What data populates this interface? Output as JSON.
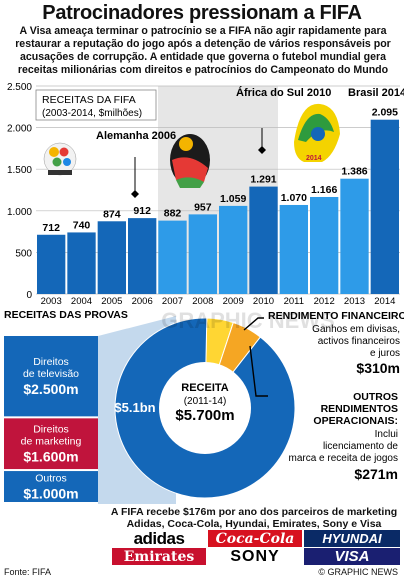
{
  "title": "Patrocinadores pressionam a FIFA",
  "intro": "A Visa ameaça terminar o patrocínio se a FIFA não agir rapidamente para restaurar a reputação do jogo após a detenção de vários responsáveis por acusações de corrupção. A entidade que governa o futebol mundial gera receitas milionárias com direitos e patrocínios do Campeonato do Mundo",
  "colors": {
    "bar_dark": "#1467b8",
    "bar_light": "#2e9be8",
    "pie_blue": "#1467b8",
    "orange": "#f5a623",
    "yellow": "#ffd633",
    "marketing_red": "#c0143c",
    "band_grey": "#e6e6e6"
  },
  "chart_data": [
    {
      "type": "bar",
      "title": "RECEITAS DA FIFA",
      "subtitle": "(2003-2014, $milhões)",
      "categories": [
        "2003",
        "2004",
        "2005",
        "2006",
        "2007",
        "2008",
        "2009",
        "2010",
        "2011",
        "2012",
        "2013",
        "2014"
      ],
      "values": [
        712,
        740,
        874,
        912,
        882,
        957,
        1059,
        1291,
        1070,
        1166,
        1386,
        2095
      ],
      "value_labels": [
        "712",
        "740",
        "874",
        "912",
        "882",
        "957",
        "1.059",
        "1.291",
        "1.070",
        "1.166",
        "1.386",
        "2.095"
      ],
      "ylim": [
        0,
        2500
      ],
      "yticks": [
        0,
        500,
        1000,
        1500,
        2000,
        2500
      ],
      "ytick_labels": [
        "0",
        "500",
        "1.000",
        "1.500",
        "2.000",
        "2.500"
      ],
      "grid": true,
      "annotations": [
        {
          "text": "Alemanha 2006",
          "year": "2006"
        },
        {
          "text": "África do Sul 2010",
          "year": "2010"
        },
        {
          "text": "Brasil 2014",
          "year": "2014"
        }
      ]
    },
    {
      "type": "pie",
      "title": "RECEITAS DAS PROVAS",
      "center_label": "RECEITA",
      "center_sub": "(2011-14)",
      "center_total": "$5.700m",
      "slices": [
        {
          "name": "Provas",
          "value": 5.1,
          "label": "$5.1bn"
        },
        {
          "name": "Rendimento financeiro",
          "value": 0.31
        },
        {
          "name": "Outros rendimentos operacionais",
          "value": 0.271
        }
      ]
    },
    {
      "type": "bar",
      "title": "RECEITAS DAS PROVAS",
      "categories": [
        "Direitos de televisão",
        "Direitos de marketing",
        "Outros"
      ],
      "values": [
        2500,
        1600,
        1000
      ],
      "value_labels": [
        "$2.500m",
        "$1.600m",
        "$1.000m"
      ]
    }
  ],
  "notes": {
    "financial_title": "RENDIMENTO FINANCEIRO",
    "financial_desc_1": "Ganhos em divisas,",
    "financial_desc_2": "activos financeiros",
    "financial_desc_3": "e juros",
    "financial_value": "$310m",
    "other_title_1": "OUTROS",
    "other_title_2": "RENDIMENTOS",
    "other_title_3": "OPERACIONAIS:",
    "other_desc_1": "Inclui",
    "other_desc_2": "licenciamento de",
    "other_desc_3": "marca e receita de jogos",
    "other_value": "$271m"
  },
  "sponsors": {
    "text": "A FIFA recebe $176m por ano dos parceiros de marketing Adidas, Coca-Cola, Hyundai, Emirates, Sony e Visa",
    "logos": [
      "adidas",
      "Coca-Cola",
      "HYUNDAI",
      "Emirates",
      "SONY",
      "VISA"
    ]
  },
  "watermark": "GRAPHIC NEWS",
  "footer": {
    "source": "Fonte: FIFA",
    "brand": "© GRAPHIC NEWS"
  }
}
